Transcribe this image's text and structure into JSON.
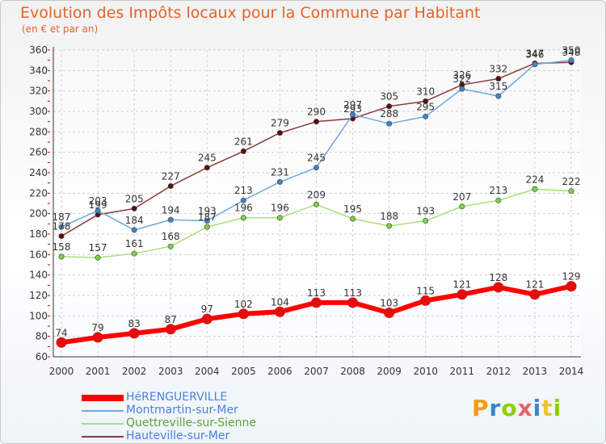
{
  "chart_data": {
    "type": "line",
    "title": "Evolution des Impôts locaux pour la Commune par Habitant",
    "subtitle": "(en € et par an)",
    "xlabel": "",
    "ylabel": "",
    "x": [
      "2000",
      "2001",
      "2002",
      "2003",
      "2004",
      "2005",
      "2006",
      "2007",
      "2008",
      "2009",
      "2010",
      "2011",
      "2012",
      "2013",
      "2014"
    ],
    "ylim": [
      60,
      360
    ],
    "yticks": [
      60,
      80,
      100,
      120,
      140,
      160,
      180,
      200,
      220,
      240,
      260,
      280,
      300,
      320,
      340,
      360
    ],
    "grid": true,
    "legend_position": "bottom-left",
    "series": [
      {
        "name": "HéRENGUERVILLE",
        "color": "#ff0000",
        "marker_color": "#e01010",
        "thick": true,
        "values": [
          74,
          79,
          83,
          87,
          97,
          102,
          104,
          113,
          113,
          103,
          115,
          121,
          128,
          121,
          129
        ]
      },
      {
        "name": "Montmartin-sur-Mer",
        "color": "#6fa8dc",
        "marker_color": "#3d85c6",
        "thick": false,
        "values": [
          187,
          203,
          184,
          194,
          193,
          213,
          231,
          245,
          297,
          288,
          295,
          322,
          315,
          346,
          350
        ]
      },
      {
        "name": "Quettreville-sur-Sienne",
        "color": "#a8e07a",
        "marker_color": "#7dd04a",
        "thick": false,
        "values": [
          158,
          157,
          161,
          168,
          187,
          196,
          196,
          209,
          195,
          188,
          193,
          207,
          213,
          224,
          222
        ]
      },
      {
        "name": "Hauteville-sur-Mer",
        "color": "#8b3a3a",
        "marker_color": "#5a1010",
        "thick": false,
        "values": [
          178,
          199,
          205,
          227,
          245,
          261,
          279,
          290,
          293,
          305,
          310,
          326,
          332,
          347,
          348
        ]
      }
    ]
  },
  "logo": {
    "letters": [
      "P",
      "r",
      "o",
      "x",
      "i",
      "t",
      "i"
    ],
    "colors": [
      "#f39c12",
      "#3d85c6",
      "#8fce00",
      "#e06666",
      "#3d85c6",
      "#f1c232",
      "#8fce00"
    ]
  }
}
